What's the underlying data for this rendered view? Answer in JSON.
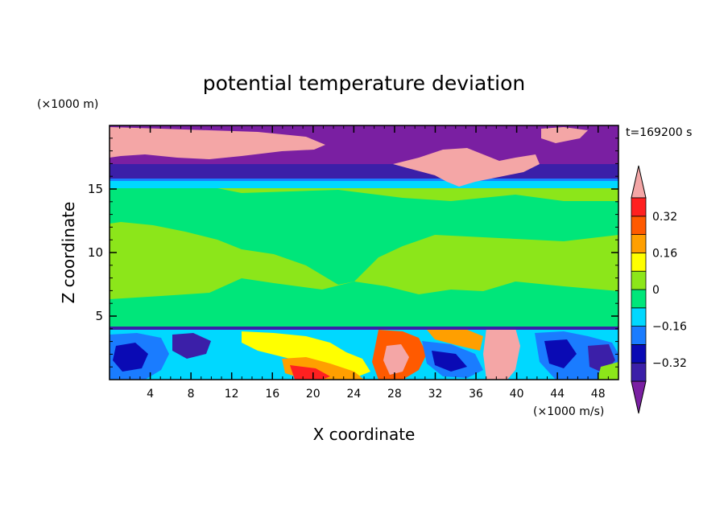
{
  "chart_data": {
    "type": "heatmap",
    "title": "potential temperature deviation",
    "xlabel": "X coordinate",
    "ylabel": "Z coordinate",
    "x_unit": "(×1000 m/s)",
    "y_unit": "(×1000 m)",
    "time_label": "t=169200 s",
    "xlim": [
      0,
      50
    ],
    "ylim": [
      0,
      20
    ],
    "x_ticks": [
      4,
      8,
      12,
      16,
      20,
      24,
      28,
      32,
      36,
      40,
      44,
      48
    ],
    "y_ticks": [
      5,
      10,
      15
    ],
    "colorbar": {
      "levels": [
        -0.4,
        -0.32,
        -0.24,
        -0.16,
        -0.08,
        0,
        0.08,
        0.16,
        0.24,
        0.32,
        0.4
      ],
      "colors": [
        "#7a1fa2",
        "#3b1fa8",
        "#0a0ab4",
        "#1a7cff",
        "#00d8ff",
        "#00e67a",
        "#8ce61a",
        "#ffff00",
        "#ff9f00",
        "#ff5a00",
        "#ff2020",
        "#f4a6a6"
      ],
      "tick_labels": [
        "0.32",
        "0.16",
        "0",
        "−0.16",
        "−0.32"
      ],
      "tick_values": [
        0.32,
        0.16,
        0,
        -0.16,
        -0.32
      ]
    },
    "regions": [
      {
        "level": "0 to 0.08",
        "z": [
          4.1,
          15.5
        ],
        "x": [
          0,
          50
        ]
      },
      {
        "level": "-0.08 to 0",
        "z": [
          4.1,
          15.5
        ],
        "x": [
          14,
          40
        ]
      },
      {
        "level": "> 0.4",
        "z": [
          16.5,
          19.9
        ],
        "x": [
          0,
          22
        ]
      },
      {
        "level": "< -0.4",
        "z": [
          16,
          20
        ],
        "x": [
          0,
          50
        ]
      },
      {
        "level": "> 0.4",
        "z": [
          0,
          4.1
        ],
        "x": [
          37,
          40.5
        ]
      },
      {
        "level": "mixed",
        "z": [
          0,
          4.1
        ],
        "x": [
          0,
          50
        ]
      }
    ]
  }
}
